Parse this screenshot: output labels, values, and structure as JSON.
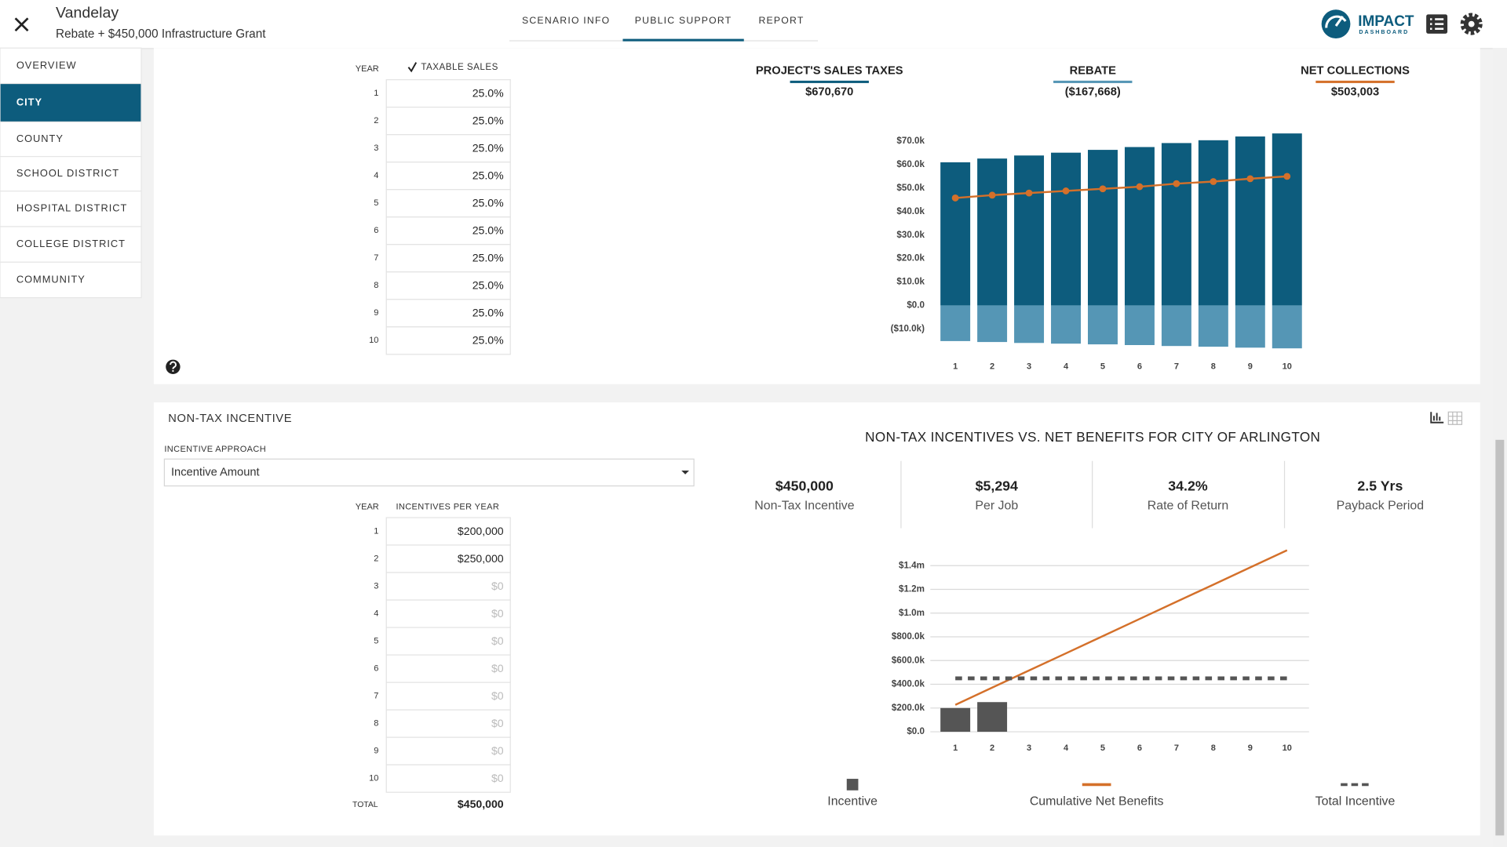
{
  "header": {
    "title": "Vandelay",
    "subtitle": "Rebate + $450,000 Infrastructure Grant",
    "tabs": [
      {
        "label": "SCENARIO INFO"
      },
      {
        "label": "PUBLIC SUPPORT",
        "active": true
      },
      {
        "label": "REPORT"
      }
    ]
  },
  "logo": {
    "name": "IMPACT",
    "tagline": "DASHBOARD"
  },
  "sidebar": [
    {
      "label": "OVERVIEW"
    },
    {
      "label": "CITY",
      "active": true
    },
    {
      "label": "COUNTY"
    },
    {
      "label": "SCHOOL DISTRICT"
    },
    {
      "label": "HOSPITAL DISTRICT"
    },
    {
      "label": "COLLEGE DISTRICT"
    },
    {
      "label": "COMMUNITY"
    }
  ],
  "sales_tax_table": {
    "year_header": "YEAR",
    "column_header": "TAXABLE SALES",
    "checked": true,
    "rows": [
      {
        "year": 1,
        "value": "25.0%"
      },
      {
        "year": 2,
        "value": "25.0%"
      },
      {
        "year": 3,
        "value": "25.0%"
      },
      {
        "year": 4,
        "value": "25.0%"
      },
      {
        "year": 5,
        "value": "25.0%"
      },
      {
        "year": 6,
        "value": "25.0%"
      },
      {
        "year": 7,
        "value": "25.0%"
      },
      {
        "year": 8,
        "value": "25.0%"
      },
      {
        "year": 9,
        "value": "25.0%"
      },
      {
        "year": 10,
        "value": "25.0%"
      }
    ]
  },
  "summary": [
    {
      "label": "PROJECT'S SALES TAXES",
      "value": "$670,670",
      "color": "#0d5c7d"
    },
    {
      "label": "REBATE",
      "value": "($167,668)",
      "color": "#5596b5"
    },
    {
      "label": "NET COLLECTIONS",
      "value": "$503,003",
      "color": "#d4702a"
    }
  ],
  "non_tax": {
    "title": "NON-TAX INCENTIVE",
    "approach_label": "INCENTIVE APPROACH",
    "approach_value": "Incentive Amount",
    "year_header": "YEAR",
    "column_header": "INCENTIVES PER YEAR",
    "rows": [
      {
        "year": 1,
        "value": "$200,000"
      },
      {
        "year": 2,
        "value": "$250,000"
      },
      {
        "year": 3,
        "value": "$0",
        "placeholder": true
      },
      {
        "year": 4,
        "value": "$0",
        "placeholder": true
      },
      {
        "year": 5,
        "value": "$0",
        "placeholder": true
      },
      {
        "year": 6,
        "value": "$0",
        "placeholder": true
      },
      {
        "year": 7,
        "value": "$0",
        "placeholder": true
      },
      {
        "year": 8,
        "value": "$0",
        "placeholder": true
      },
      {
        "year": 9,
        "value": "$0",
        "placeholder": true
      },
      {
        "year": 10,
        "value": "$0",
        "placeholder": true
      }
    ],
    "total_label": "TOTAL",
    "total_value": "$450,000"
  },
  "incentive_metrics": [
    {
      "value": "$450,000",
      "label": "Non-Tax Incentive"
    },
    {
      "value": "$5,294",
      "label": "Per Job"
    },
    {
      "value": "34.2%",
      "label": "Rate of Return"
    },
    {
      "value": "2.5 Yrs",
      "label": "Payback Period"
    }
  ],
  "chart_data": [
    {
      "type": "bar",
      "grid": false,
      "categories": [
        "1",
        "2",
        "3",
        "4",
        "5",
        "6",
        "7",
        "8",
        "9",
        "10"
      ],
      "series": [
        {
          "type": "bar",
          "color": "#0d5c7d",
          "values": [
            61000,
            62600,
            63900,
            65100,
            66300,
            67500,
            69200,
            70400,
            72000,
            73300
          ]
        },
        {
          "type": "bar",
          "color": "#5596b5",
          "values": [
            -15200,
            -15600,
            -16000,
            -16300,
            -16600,
            -16900,
            -17300,
            -17600,
            -18000,
            -18300
          ]
        },
        {
          "type": "line",
          "color": "#d4702a",
          "markers": true,
          "values": [
            45800,
            47000,
            47900,
            48800,
            49700,
            50600,
            51900,
            52800,
            54000,
            55000
          ]
        }
      ],
      "ylim": [
        -20000,
        75000
      ],
      "yticks": [
        {
          "value": -10000,
          "label": "($10.0k)"
        },
        {
          "value": 0,
          "label": "$0.0"
        },
        {
          "value": 10000,
          "label": "$10.0k"
        },
        {
          "value": 20000,
          "label": "$20.0k"
        },
        {
          "value": 30000,
          "label": "$30.0k"
        },
        {
          "value": 40000,
          "label": "$40.0k"
        },
        {
          "value": 50000,
          "label": "$50.0k"
        },
        {
          "value": 60000,
          "label": "$60.0k"
        },
        {
          "value": 70000,
          "label": "$70.0k"
        }
      ]
    },
    {
      "type": "bar",
      "grid": true,
      "legend": "bottom",
      "title": "NON-TAX INCENTIVES VS. NET BENEFITS FOR CITY OF ARLINGTON",
      "categories": [
        "1",
        "2",
        "3",
        "4",
        "5",
        "6",
        "7",
        "8",
        "9",
        "10"
      ],
      "series": [
        {
          "name": "Incentive",
          "type": "bar",
          "color": "#555555",
          "values": [
            200000,
            250000,
            0,
            0,
            0,
            0,
            0,
            0,
            0,
            0
          ]
        },
        {
          "name": "Cumulative Net Benefits",
          "type": "line",
          "color": "#d4702a",
          "values": [
            227000,
            372000,
            517000,
            661000,
            806000,
            951000,
            1096000,
            1240000,
            1385000,
            1530000
          ]
        },
        {
          "name": "Total Incentive",
          "type": "dashed",
          "color": "#555555",
          "values": [
            450000,
            450000,
            450000,
            450000,
            450000,
            450000,
            450000,
            450000,
            450000,
            450000
          ]
        }
      ],
      "ylim": [
        0,
        1550000
      ],
      "yticks": [
        {
          "value": 0,
          "label": "$0.0"
        },
        {
          "value": 200000,
          "label": "$200.0k"
        },
        {
          "value": 400000,
          "label": "$400.0k"
        },
        {
          "value": 600000,
          "label": "$600.0k"
        },
        {
          "value": 800000,
          "label": "$800.0k"
        },
        {
          "value": 1000000,
          "label": "$1.0m"
        },
        {
          "value": 1200000,
          "label": "$1.2m"
        },
        {
          "value": 1400000,
          "label": "$1.4m"
        }
      ]
    }
  ]
}
